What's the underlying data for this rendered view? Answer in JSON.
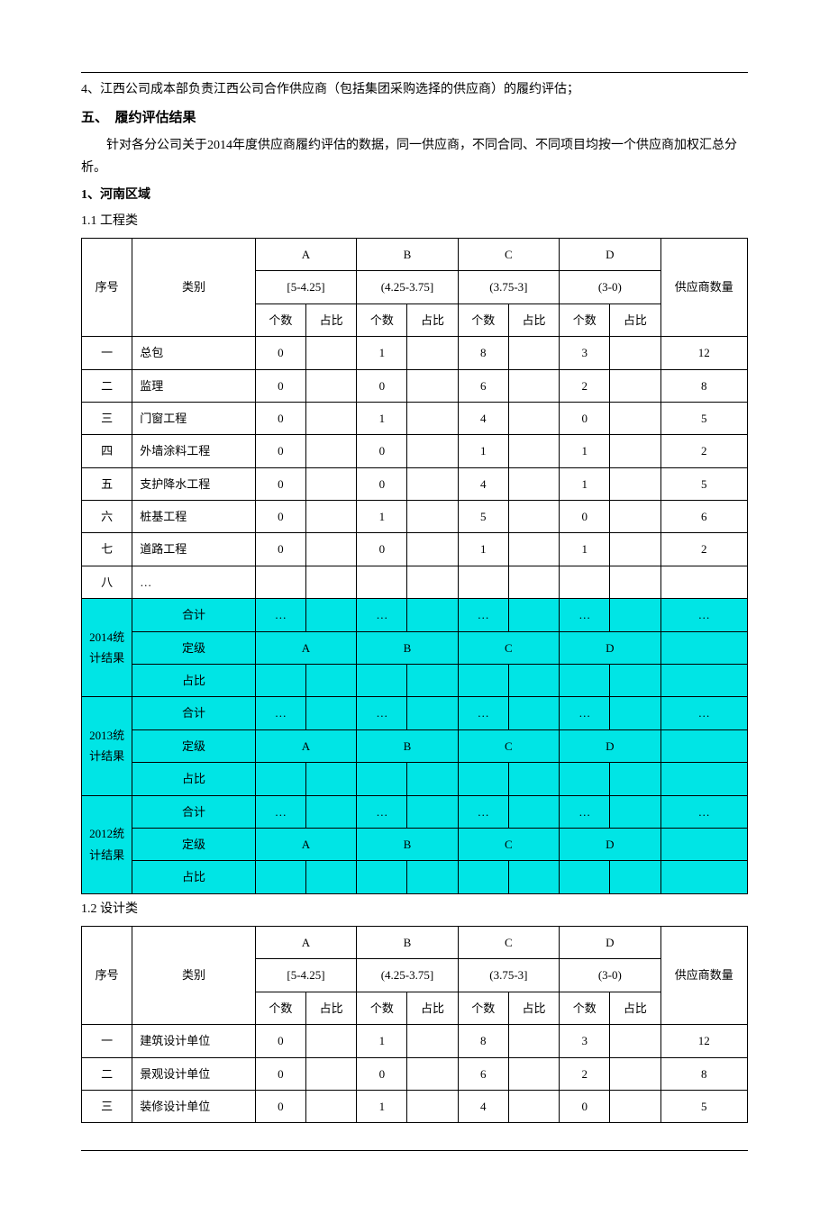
{
  "line4": "4、江西公司成本部负责江西公司合作供应商（包括集团采购选择的供应商）的履约评估；",
  "heading5": "五、　履约评估结果",
  "intro": "针对各分公司关于2014年度供应商履约评估的数据，同一供应商，不同合同、不同项目均按一个供应商加权汇总分析。",
  "region1": "1、河南区域",
  "sub11": "1.1 工程类",
  "sub12": "1.2 设计类",
  "colSeq": "序号",
  "colCat": "类别",
  "colTotal": "供应商数量",
  "gradeA": "A",
  "gradeB": "B",
  "gradeC": "C",
  "gradeD": "D",
  "rangeA": "[5-4.25]",
  "rangeB": "(4.25-3.75]",
  "rangeC": "(3.75-3]",
  "rangeD": "(3-0)",
  "subCount": "个数",
  "subRatio": "占比",
  "t1rows": [
    {
      "seq": "一",
      "cat": "总包",
      "a": "0",
      "b": "1",
      "c": "8",
      "d": "3",
      "tot": "12"
    },
    {
      "seq": "二",
      "cat": "监理",
      "a": "0",
      "b": "0",
      "c": "6",
      "d": "2",
      "tot": "8"
    },
    {
      "seq": "三",
      "cat": "门窗工程",
      "a": "0",
      "b": "1",
      "c": "4",
      "d": "0",
      "tot": "5"
    },
    {
      "seq": "四",
      "cat": "外墙涂料工程",
      "a": "0",
      "b": "0",
      "c": "1",
      "d": "1",
      "tot": "2"
    },
    {
      "seq": "五",
      "cat": "支护降水工程",
      "a": "0",
      "b": "0",
      "c": "4",
      "d": "1",
      "tot": "5"
    },
    {
      "seq": "六",
      "cat": "桩基工程",
      "a": "0",
      "b": "1",
      "c": "5",
      "d": "0",
      "tot": "6"
    },
    {
      "seq": "七",
      "cat": "道路工程",
      "a": "0",
      "b": "0",
      "c": "1",
      "d": "1",
      "tot": "2"
    },
    {
      "seq": "八",
      "cat": "…",
      "a": "",
      "b": "",
      "c": "",
      "d": "",
      "tot": ""
    }
  ],
  "summaryYears": [
    "2014统计结果",
    "2013统计结果",
    "2012统计结果"
  ],
  "sumHeji": "合计",
  "sumDingji": "定级",
  "sumZhanbi": "占比",
  "dots": "…",
  "t2rows": [
    {
      "seq": "一",
      "cat": "建筑设计单位",
      "a": "0",
      "b": "1",
      "c": "8",
      "d": "3",
      "tot": "12"
    },
    {
      "seq": "二",
      "cat": "景观设计单位",
      "a": "0",
      "b": "0",
      "c": "6",
      "d": "2",
      "tot": "8"
    },
    {
      "seq": "三",
      "cat": "装修设计单位",
      "a": "0",
      "b": "1",
      "c": "4",
      "d": "0",
      "tot": "5"
    }
  ],
  "colors": {
    "highlight": "#00e5e5",
    "border": "#000000",
    "bg": "#ffffff"
  }
}
